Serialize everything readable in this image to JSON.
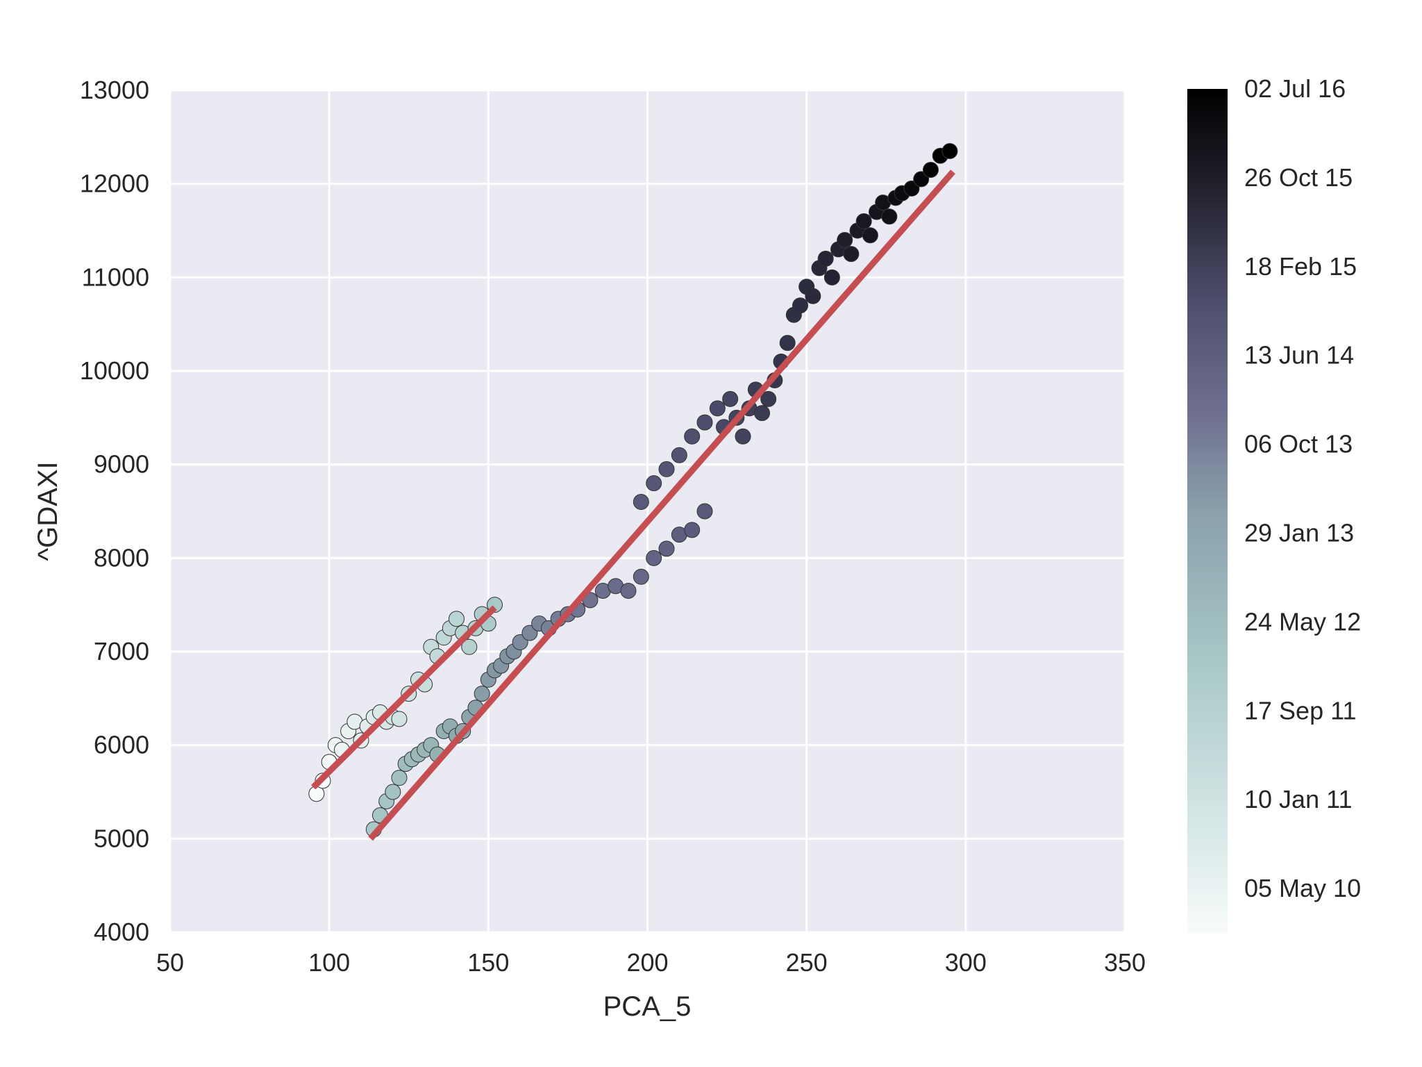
{
  "chart_data": {
    "type": "scatter",
    "title": "",
    "xlabel": "PCA_5",
    "ylabel": "^GDAXI",
    "xlim": [
      50,
      350
    ],
    "ylim": [
      4000,
      13000
    ],
    "xticks": [
      "50",
      "100",
      "150",
      "200",
      "250",
      "300",
      "350"
    ],
    "yticks": [
      "4000",
      "5000",
      "6000",
      "7000",
      "8000",
      "9000",
      "10000",
      "11000",
      "12000",
      "13000"
    ],
    "grid": true,
    "background": "#eaeaf2",
    "colorbar": {
      "colormap": "bone_r",
      "labels": [
        "02 Jul 16",
        "26 Oct 15",
        "18 Feb 15",
        "13 Jun 14",
        "06 Oct 13",
        "29 Jan 13",
        "24 May 12",
        "17 Sep 11",
        "10 Jan 11",
        "05 May 10"
      ],
      "colors": [
        "#000000",
        "#1a1a24",
        "#33334a",
        "#4d4d6c",
        "#69698a",
        "#7f8fa0",
        "#93b0b0",
        "#a8c8c7",
        "#cfe1e1",
        "#f8fbfb"
      ]
    },
    "fit_lines": [
      {
        "color": "#c44e52",
        "x": [
          95,
          152
        ],
        "y": [
          5550,
          7470
        ]
      },
      {
        "color": "#c44e52",
        "x": [
          113,
          296
        ],
        "y": [
          5000,
          12130
        ]
      }
    ],
    "series": [
      {
        "segment": 1,
        "date_fraction": [
          0.0,
          0.22
        ],
        "x": [
          96,
          98,
          100,
          102,
          104,
          106,
          108,
          110,
          112,
          114,
          116,
          118,
          120,
          122,
          125,
          128,
          130,
          132,
          134,
          136,
          138,
          140,
          142,
          144,
          146,
          148,
          150,
          152
        ],
        "y": [
          5480,
          5620,
          5820,
          6000,
          5950,
          6150,
          6250,
          6050,
          6200,
          6300,
          6350,
          6250,
          6300,
          6280,
          6550,
          6700,
          6650,
          7050,
          6950,
          7150,
          7250,
          7350,
          7200,
          7050,
          7250,
          7400,
          7300,
          7500
        ]
      },
      {
        "segment": 2,
        "date_fraction": [
          0.22,
          0.62
        ],
        "x": [
          114,
          116,
          118,
          120,
          122,
          124,
          126,
          128,
          130,
          132,
          134,
          136,
          138,
          140,
          142,
          144,
          146,
          148,
          150,
          152,
          154,
          156,
          158,
          160,
          163,
          166,
          169,
          172,
          175,
          178,
          182,
          186,
          190,
          194,
          198,
          202,
          206,
          210,
          214,
          218
        ],
        "y": [
          5100,
          5250,
          5400,
          5500,
          5650,
          5800,
          5850,
          5900,
          5950,
          6000,
          5900,
          6150,
          6200,
          6100,
          6150,
          6300,
          6400,
          6550,
          6700,
          6800,
          6850,
          6950,
          7000,
          7100,
          7200,
          7300,
          7250,
          7350,
          7400,
          7450,
          7550,
          7650,
          7700,
          7650,
          7800,
          8000,
          8100,
          8250,
          8300,
          8500
        ]
      },
      {
        "segment": 3,
        "date_fraction": [
          0.62,
          1.0
        ],
        "x": [
          198,
          202,
          206,
          210,
          214,
          218,
          222,
          224,
          226,
          228,
          230,
          232,
          234,
          236,
          238,
          240,
          242,
          244,
          246,
          248,
          250,
          252,
          254,
          256,
          258,
          260,
          262,
          264,
          266,
          268,
          270,
          272,
          274,
          276,
          278,
          280,
          283,
          286,
          289,
          292,
          295
        ],
        "y": [
          8600,
          8800,
          8950,
          9100,
          9300,
          9450,
          9600,
          9400,
          9700,
          9500,
          9300,
          9600,
          9800,
          9550,
          9700,
          9900,
          10100,
          10300,
          10600,
          10700,
          10900,
          10800,
          11100,
          11200,
          11000,
          11300,
          11400,
          11250,
          11500,
          11600,
          11450,
          11700,
          11800,
          11650,
          11850,
          11900,
          11950,
          12050,
          12150,
          12300,
          12350
        ]
      }
    ]
  }
}
